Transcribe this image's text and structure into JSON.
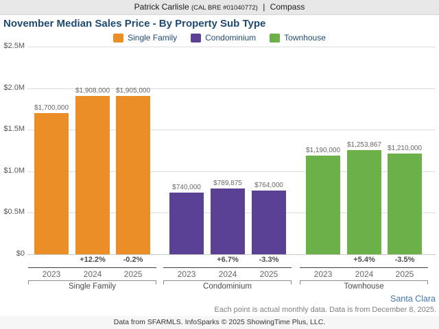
{
  "header": {
    "agent": "Patrick Carlisle",
    "license": "(CAL BRE #01040772)",
    "separator": "|",
    "brand": "Compass"
  },
  "title": "November Median Sales Price - By Property Sub Type",
  "legend": {
    "items": [
      {
        "label": "Single Family",
        "color": "#EC8E26"
      },
      {
        "label": "Condominium",
        "color": "#5A4194"
      },
      {
        "label": "Townhouse",
        "color": "#6CB04A"
      }
    ]
  },
  "chart_data": {
    "type": "bar",
    "title": "November Median Sales Price - By Property Sub Type",
    "xlabel": "",
    "ylabel": "",
    "ylim": [
      0,
      2500000
    ],
    "y_tick_labels_top_to_bottom": [
      "$2.5M",
      "$2.0M",
      "$1.5M",
      "$1.0M",
      "$0.5M",
      "$0"
    ],
    "grid": true,
    "legend_position": "top",
    "categories": [
      "2023",
      "2024",
      "2025"
    ],
    "groups": [
      {
        "name": "Single Family",
        "color": "#EC8E26",
        "values": [
          1700000,
          1908000,
          1905000
        ],
        "value_labels": [
          "$1,700,000",
          "$1,908,000",
          "$1,905,000"
        ],
        "pct_changes": [
          "",
          "+12.2%",
          "-0.2%"
        ]
      },
      {
        "name": "Condominium",
        "color": "#5A4194",
        "values": [
          740000,
          789875,
          764000
        ],
        "value_labels": [
          "$740,000",
          "$789,875",
          "$764,000"
        ],
        "pct_changes": [
          "",
          "+6.7%",
          "-3.3%"
        ]
      },
      {
        "name": "Townhouse",
        "color": "#6CB04A",
        "values": [
          1190000,
          1253867,
          1210000
        ],
        "value_labels": [
          "$1,190,000",
          "$1,253,867",
          "$1,210,000"
        ],
        "pct_changes": [
          "",
          "+5.4%",
          "-3.5%"
        ]
      }
    ]
  },
  "footer": {
    "location": "Santa Clara",
    "note": "Each point is actual monthly data. Data is from December 8, 2025.",
    "attribution": "Data from SFARMLS. InfoSparks © 2025 ShowingTime Plus, LLC."
  }
}
